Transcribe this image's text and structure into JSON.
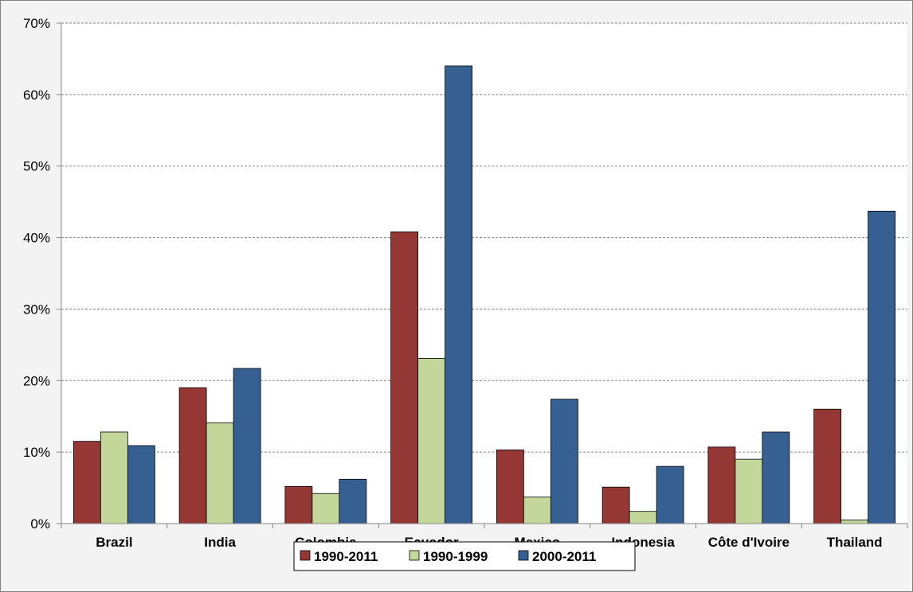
{
  "chart_data": {
    "type": "bar",
    "categories": [
      "Brazil",
      "India",
      "Colombia",
      "Ecuador",
      "Mexico",
      "Indonesia",
      "Côte d'Ivoire",
      "Thailand"
    ],
    "series": [
      {
        "name": "1990-2011",
        "color": "#953735",
        "values": [
          11.5,
          19.0,
          5.2,
          40.8,
          10.3,
          5.1,
          10.7,
          16.0
        ]
      },
      {
        "name": "1990-1999",
        "color": "#c4d79b",
        "values": [
          12.8,
          14.1,
          4.2,
          23.1,
          3.7,
          1.7,
          9.0,
          0.5
        ]
      },
      {
        "name": "2000-2011",
        "color": "#366092",
        "values": [
          10.9,
          21.7,
          6.2,
          64.0,
          17.4,
          8.0,
          12.8,
          43.7
        ]
      }
    ],
    "ylim": [
      0,
      70
    ],
    "yticks": [
      0,
      10,
      20,
      30,
      40,
      50,
      60,
      70
    ],
    "ytick_labels": [
      "0%",
      "10%",
      "20%",
      "30%",
      "40%",
      "50%",
      "60%",
      "70%"
    ],
    "grid": true,
    "legend_position": "bottom-center",
    "title": "",
    "xlabel": "",
    "ylabel": ""
  }
}
